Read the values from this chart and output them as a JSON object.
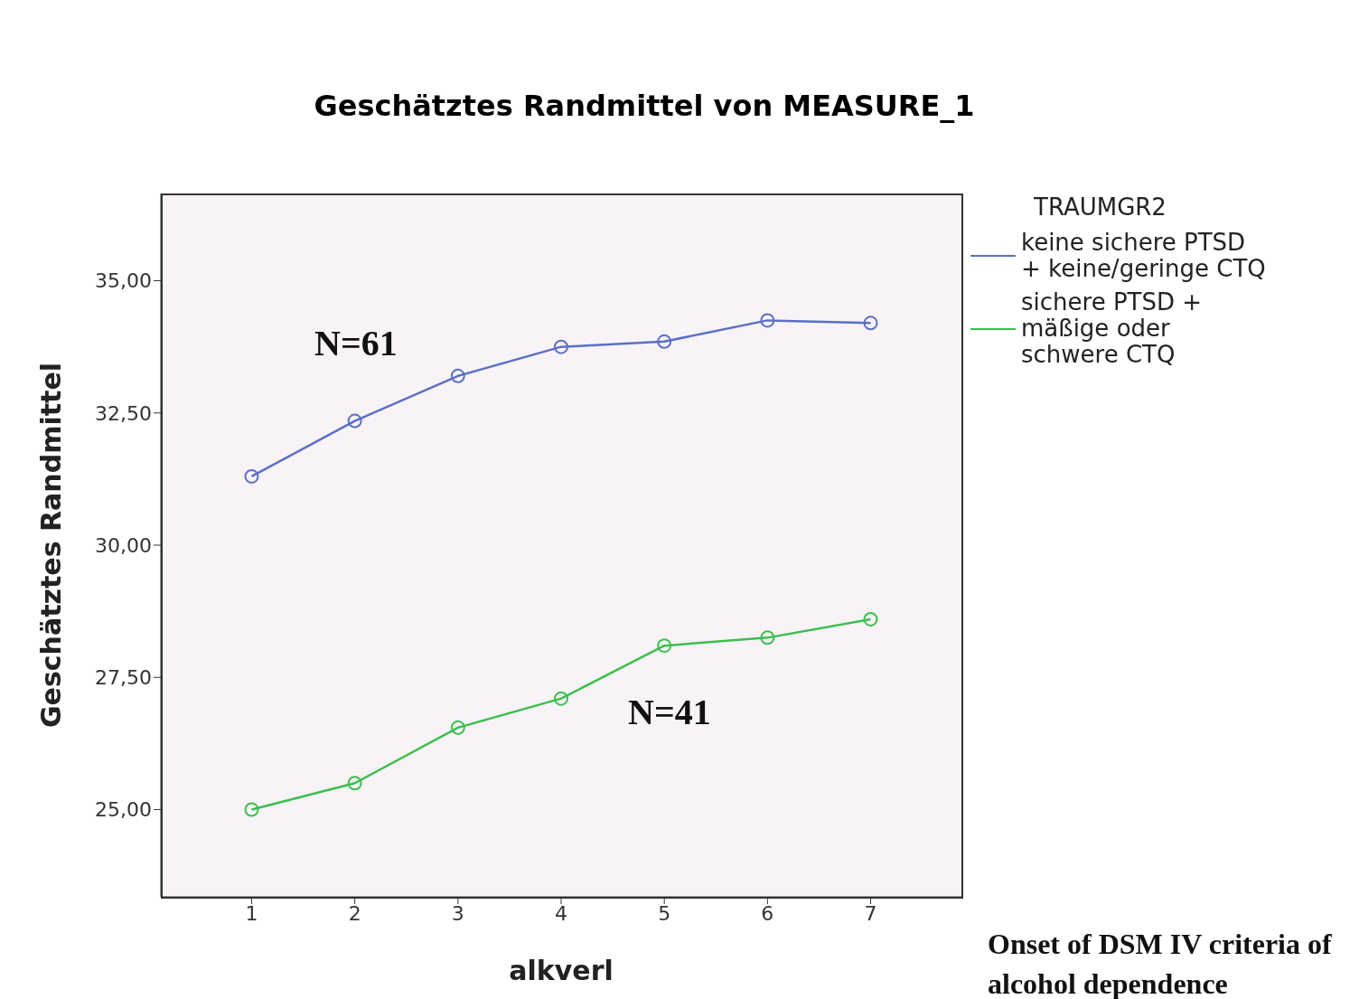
{
  "chart_data": {
    "type": "line",
    "title": "Geschätztes Randmittel von MEASURE_1",
    "xlabel": "alkverl",
    "ylabel": "Geschätztes Randmittel",
    "legend_title": "TRAUMGR2",
    "x": [
      1,
      2,
      3,
      4,
      5,
      6,
      7
    ],
    "series": [
      {
        "name": "keine sichere PTSD + keine/geringe CTQ",
        "color": "#5b6fc6",
        "values": [
          31.3,
          32.35,
          33.2,
          33.75,
          33.85,
          34.25,
          34.2
        ]
      },
      {
        "name": "sichere PTSD + mäßige oder schwere CTQ",
        "color": "#3cbf4c",
        "values": [
          25.0,
          25.5,
          26.55,
          27.1,
          28.1,
          28.25,
          28.6
        ]
      }
    ],
    "xlim": [
      0.12,
      7.88
    ],
    "xticks": [
      1,
      2,
      3,
      4,
      5,
      6,
      7
    ],
    "ylim": [
      23.35,
      36.65
    ],
    "yticks": [
      {
        "value": 25,
        "label": "25,00"
      },
      {
        "value": 27.5,
        "label": "27,50"
      },
      {
        "value": 30,
        "label": "30,00"
      },
      {
        "value": 32.5,
        "label": "32,50"
      },
      {
        "value": 35,
        "label": "35,00"
      }
    ],
    "grid": false,
    "legend": "right",
    "marker": "circle",
    "line_style": "solid",
    "annotations": [
      "N=61",
      "N=41",
      "Onset of DSM IV criteria of alcohol dependence"
    ]
  }
}
